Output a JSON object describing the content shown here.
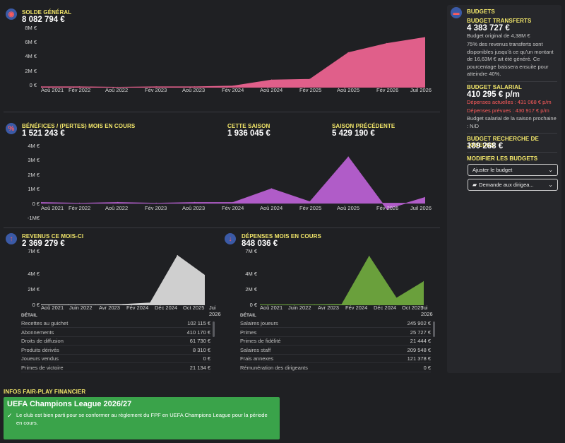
{
  "balance": {
    "title": "SOLDE GÉNÉRAL",
    "value": "8 082 794 €",
    "y_ticks": [
      "8M €",
      "6M €",
      "4M €",
      "2M €",
      "0 €"
    ],
    "x_ticks": [
      "Aoû 2021",
      "Fév 2022",
      "Aoû 2022",
      "Fév 2023",
      "Aoû 2023",
      "Fév 2024",
      "Aoû 2024",
      "Fév 2025",
      "Aoû 2025",
      "Fév 2026",
      "Juil 2026"
    ]
  },
  "profit": {
    "title": "BÉNÉFICES / (PERTES) MOIS EN COURS",
    "value": "1 521 243 €",
    "season_title": "CETTE SAISON",
    "season_value": "1 936 045 €",
    "prev_title": "SAISON PRÉCÉDENTE",
    "prev_value": "5 429 190 €",
    "y_ticks": [
      "4M €",
      "3M €",
      "2M €",
      "1M €",
      "0 €",
      "-1M€"
    ],
    "x_ticks": [
      "Aoû 2021",
      "Fév 2022",
      "Aoû 2022",
      "Fév 2023",
      "Aoû 2023",
      "Fév 2024",
      "Aoû 2024",
      "Fév 2025",
      "Aoû 2025",
      "Fév 2026",
      "Juil 2026"
    ]
  },
  "revenue": {
    "title": "REVENUS CE MOIS-CI",
    "value": "2 369 279 €",
    "y_ticks": [
      "7M €",
      "4M €",
      "2M €",
      "0 €"
    ],
    "x_ticks": [
      "Aoû 2021",
      "Juin 2022",
      "Avr 2023",
      "Fév 2024",
      "Déc 2024",
      "Oct 2025",
      "Jui 2026"
    ],
    "detail_title": "DÉTAIL",
    "rows": [
      {
        "label": "Recettes au guichet",
        "value": "102 115 €"
      },
      {
        "label": "Abonnements",
        "value": "410 170 €"
      },
      {
        "label": "Droits de diffusion",
        "value": "61 730 €"
      },
      {
        "label": "Produits dérivés",
        "value": "8 310 €"
      },
      {
        "label": "Joueurs vendus",
        "value": "0 €"
      },
      {
        "label": "Primes de victoire",
        "value": "21 134 €"
      }
    ]
  },
  "expenses": {
    "title": "DÉPENSES MOIS EN COURS",
    "value": "848 036 €",
    "y_ticks": [
      "7M €",
      "4M €",
      "2M €",
      "0 €"
    ],
    "x_ticks": [
      "Aoû 2021",
      "Juin 2022",
      "Avr 2023",
      "Fév 2024",
      "Déc 2024",
      "Oct 2025",
      "Jui 2026"
    ],
    "detail_title": "DÉTAIL",
    "rows": [
      {
        "label": "Salaires joueurs",
        "value": "245 902 €"
      },
      {
        "label": "Primes",
        "value": "25 727 €"
      },
      {
        "label": "Primes de fidélité",
        "value": "21 444 €"
      },
      {
        "label": "Salaires staff",
        "value": "209 548 €"
      },
      {
        "label": "Frais annexes",
        "value": "121 378 €"
      },
      {
        "label": "Rémunération des dirigeants",
        "value": "0 €"
      }
    ]
  },
  "budgets": {
    "title": "BUDGETS",
    "transfer_title": "BUDGET TRANSFERTS",
    "transfer_value": "4 383 727 €",
    "transfer_original": "Budget original de 4,38M €",
    "transfer_note": "75% des revenus transferts sont disponibles jusqu'à ce qu'un montant de 16,63M € ait été généré. Ce pourcentage baissera ensuite pour atteindre 40%.",
    "wage_title": "BUDGET SALARIAL",
    "wage_value": "410 295 € p/m",
    "wage_current": "Dépenses actuelles : 431 068 € p/m",
    "wage_expected": "Dépenses prévues : 430 917 € p/m",
    "wage_next": "Budget salarial de la saison prochaine : N/D",
    "scout_title": "BUDGET RECHERCHE DE JOUEURS",
    "scout_value": "109 268 €",
    "modify_title": "MODIFIER LES BUDGETS",
    "adjust_label": "Ajuster le budget",
    "request_label": "Demande aux dirigea..."
  },
  "ffp": {
    "section_title": "INFOS FAIR-PLAY FINANCIER",
    "competition": "UEFA Champions League 2026/27",
    "message": "Le club est bien parti pour se conformer au règlement du FPF en UEFA Champions League pour la période en cours."
  },
  "colors": {
    "balance": "#e05f8a",
    "profit": "#b05cc8",
    "revenue": "#cfcfcf",
    "expenses": "#6aa03c",
    "accent_yellow": "#f3e76a",
    "ffp_green": "#3aa34a"
  },
  "icons": {
    "balance": "coins-icon",
    "profit": "percent-icon",
    "revenue": "arrow-up-icon",
    "expenses": "arrow-down-icon",
    "budgets": "cash-icon"
  },
  "chart_data": [
    {
      "type": "area",
      "title": "SOLDE GÉNÉRAL",
      "x": [
        "Aoû 2021",
        "Fév 2022",
        "Aoû 2022",
        "Fév 2023",
        "Aoû 2023",
        "Fév 2024",
        "Aoû 2024",
        "Fév 2025",
        "Aoû 2025",
        "Fév 2026",
        "Juil 2026"
      ],
      "values": [
        0.1,
        0.1,
        0.05,
        0.1,
        0.1,
        0.2,
        1.0,
        1.1,
        4.6,
        5.8,
        6.6
      ],
      "ylim": [
        0,
        8
      ]
    },
    {
      "type": "area",
      "title": "BÉNÉFICES / (PERTES) MOIS EN COURS",
      "x": [
        "Aoû 2021",
        "Fév 2022",
        "Aoû 2022",
        "Fév 2023",
        "Aoû 2023",
        "Fév 2024",
        "Aoû 2024",
        "Fév 2025",
        "Aoû 2025",
        "Fév 2026",
        "Juil 2026"
      ],
      "values": [
        0.05,
        0.0,
        0.05,
        0.0,
        0.05,
        0.05,
        1.0,
        0.1,
        3.2,
        -0.4,
        0.4
      ],
      "ylim": [
        -1,
        4
      ]
    },
    {
      "type": "area",
      "title": "REVENUS CE MOIS-CI",
      "x": [
        "Aoû 2021",
        "Juin 2022",
        "Avr 2023",
        "Fév 2024",
        "Déc 2024",
        "Oct 2025",
        "Jui 2026"
      ],
      "values": [
        0.05,
        0.05,
        0.05,
        0.1,
        0.3,
        6.3,
        3.8
      ],
      "ylim": [
        0,
        7
      ]
    },
    {
      "type": "area",
      "title": "DÉPENSES MOIS EN COURS",
      "x": [
        "Aoû 2021",
        "Juin 2022",
        "Avr 2023",
        "Fév 2024",
        "Déc 2024",
        "Oct 2025",
        "Jui 2026"
      ],
      "values": [
        0.05,
        0.05,
        0.05,
        0.1,
        6.2,
        0.9,
        3.0
      ],
      "ylim": [
        0,
        7
      ]
    }
  ]
}
